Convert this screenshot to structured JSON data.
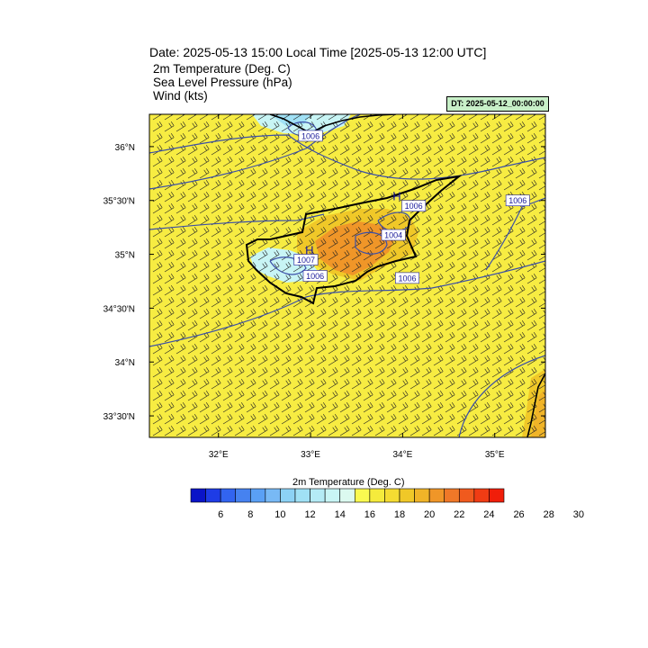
{
  "title": "Date: 2025-05-13  15:00 Local Time [2025-05-13  12:00 UTC]",
  "fields": [
    "2m Temperature (Deg. C)",
    "Sea Level Pressure   (hPa)",
    "Wind   (kts)"
  ],
  "dt_label": "DT: 2025-05-12_00:00:00",
  "map": {
    "lon_range": [
      31.25,
      35.55
    ],
    "lat_range": [
      33.3,
      36.3
    ],
    "lon_ticks": [
      {
        "v": 32,
        "label": "32°E"
      },
      {
        "v": 33,
        "label": "33°E"
      },
      {
        "v": 34,
        "label": "34°E"
      },
      {
        "v": 35,
        "label": "35°E"
      }
    ],
    "lat_ticks": [
      {
        "v": 36,
        "label": "36°N"
      },
      {
        "v": 35.5,
        "label": "35°30'N"
      },
      {
        "v": 35,
        "label": "35°N"
      },
      {
        "v": 34.5,
        "label": "34°30'N"
      },
      {
        "v": 34,
        "label": "34°N"
      },
      {
        "v": 33.5,
        "label": "33°30'N"
      }
    ],
    "background_color": "#f7ec42",
    "pressure_labels": [
      {
        "lon": 33.0,
        "lat": 36.1,
        "text": "1006"
      },
      {
        "lon": 34.12,
        "lat": 35.45,
        "text": "1006"
      },
      {
        "lon": 35.25,
        "lat": 35.5,
        "text": "1006"
      },
      {
        "lon": 33.05,
        "lat": 34.8,
        "text": "1006"
      },
      {
        "lon": 34.05,
        "lat": 34.78,
        "text": "1006"
      },
      {
        "lon": 32.95,
        "lat": 34.95,
        "text": "1007"
      },
      {
        "lon": 33.9,
        "lat": 35.18,
        "text": "1004"
      }
    ],
    "high_markers": [
      {
        "lon": 33.95,
        "lat": 35.5,
        "text": "H"
      },
      {
        "lon": 33.0,
        "lat": 35.0,
        "text": "H"
      }
    ]
  },
  "colorbar": {
    "title": "2m Temperature (Deg. C)",
    "colors": [
      "#0a14c8",
      "#1e3ce6",
      "#3264f0",
      "#4682f0",
      "#5aa0f5",
      "#78b9f5",
      "#8cd2f5",
      "#a0e1f5",
      "#b4ebf5",
      "#c8f5f5",
      "#dcfaf0",
      "#fafa50",
      "#f5eb3c",
      "#f5dc32",
      "#f0c828",
      "#f0b428",
      "#f09628",
      "#f07828",
      "#f05a1e",
      "#f03c14",
      "#f01e0a"
    ],
    "labels": [
      "6",
      "8",
      "10",
      "12",
      "14",
      "16",
      "18",
      "20",
      "22",
      "24",
      "26",
      "28",
      "30"
    ]
  }
}
